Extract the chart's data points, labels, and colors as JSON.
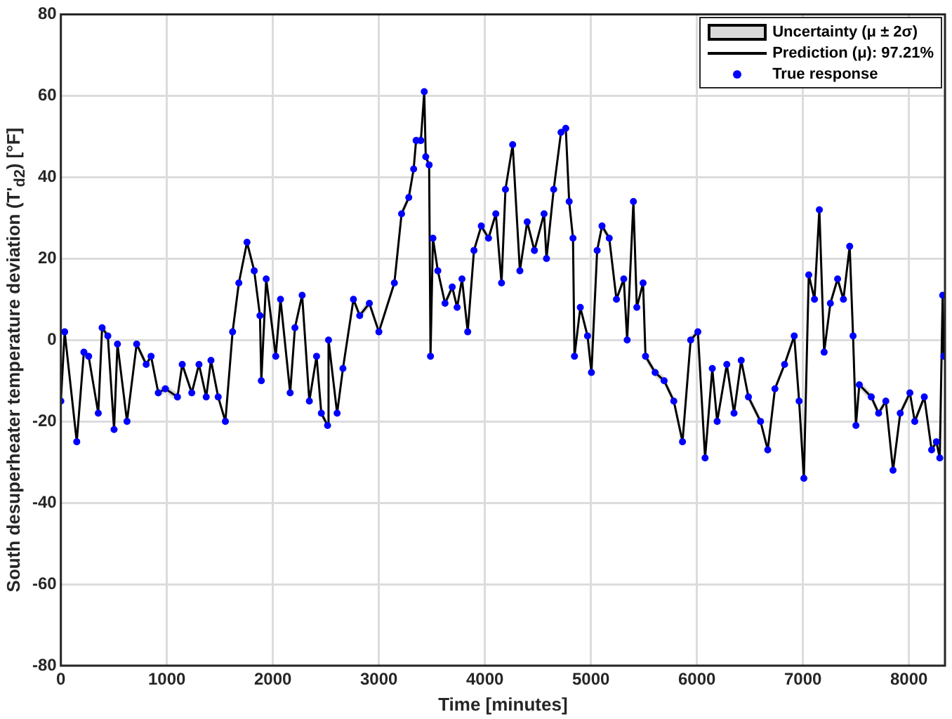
{
  "chart_data": {
    "type": "line",
    "xlabel": "Time [minutes]",
    "ylabel": "South desuperheater temperature deviation (T'$_{d2}$) [°F]",
    "annotations": [
      "Uncertainty (μ ± 2σ)"
    ],
    "x": [
      0,
      36,
      150,
      217,
      262,
      353,
      389,
      443,
      502,
      534,
      624,
      715,
      805,
      851,
      919,
      986,
      1100,
      1145,
      1235,
      1303,
      1371,
      1416,
      1484,
      1552,
      1620,
      1679,
      1756,
      1824,
      1878,
      1891,
      1937,
      2027,
      2072,
      2163,
      2208,
      2276,
      2344,
      2412,
      2457,
      2516,
      2525,
      2606,
      2661,
      2760,
      2819,
      2910,
      3000,
      3146,
      3214,
      3282,
      3328,
      3351,
      3396,
      3428,
      3442,
      3474,
      3487,
      3510,
      3556,
      3624,
      3692,
      3738,
      3784,
      3838,
      3897,
      3966,
      4034,
      4103,
      4157,
      4194,
      4262,
      4330,
      4399,
      4467,
      4558,
      4581,
      4649,
      4718,
      4763,
      4795,
      4831,
      4845,
      4900,
      4968,
      5005,
      5059,
      5105,
      5173,
      5241,
      5310,
      5342,
      5401,
      5433,
      5492,
      5515,
      5606,
      5691,
      5782,
      5864,
      5941,
      6009,
      6077,
      6145,
      6191,
      6282,
      6350,
      6418,
      6486,
      6600,
      6668,
      6736,
      6827,
      6918,
      6964,
      7009,
      7055,
      7109,
      7155,
      7200,
      7259,
      7327,
      7382,
      7441,
      7473,
      7500,
      7532,
      7645,
      7714,
      7782,
      7850,
      7918,
      8009,
      8055,
      8145,
      8214,
      8259,
      8291,
      8318,
      8330
    ],
    "series": [
      {
        "name": "Prediction (μ): 97.21%",
        "color": "#000000",
        "line_style": "solid",
        "values": [
          -15,
          2,
          -25,
          -3,
          -4,
          -18,
          3,
          1,
          -22,
          -1,
          -20,
          -1,
          -6,
          -4,
          -13,
          -12,
          -14,
          -6,
          -13,
          -6,
          -14,
          -5,
          -14,
          -20,
          2,
          14,
          24,
          17,
          6,
          -10,
          15,
          -4,
          10,
          -13,
          3,
          11,
          -15,
          -4,
          -18,
          -21,
          0,
          -18,
          -7,
          10,
          6,
          9,
          2,
          14,
          31,
          35,
          42,
          49,
          49,
          61,
          45,
          43,
          -4,
          25,
          17,
          9,
          13,
          8,
          15,
          2,
          22,
          28,
          25,
          31,
          14,
          37,
          48,
          17,
          29,
          22,
          31,
          20,
          37,
          51,
          52,
          34,
          25,
          -4,
          8,
          1,
          -8,
          22,
          28,
          25,
          10,
          15,
          0,
          34,
          8,
          14,
          -4,
          -8,
          -10,
          -15,
          -25,
          0,
          2,
          -29,
          -7,
          -20,
          -6,
          -18,
          -5,
          -14,
          -20,
          -27,
          -12,
          -6,
          1,
          -15,
          -34,
          16,
          10,
          32,
          -3,
          9,
          15,
          10,
          23,
          1,
          -21,
          -11,
          -14,
          -18,
          -15,
          -32,
          -18,
          -13,
          -20,
          -14,
          -27,
          -25,
          -29,
          11,
          -4
        ],
        "lower": [
          -16,
          1,
          -26,
          -4,
          -5,
          -19,
          2,
          0,
          -23,
          -2,
          -21,
          -2,
          -7,
          -5,
          -14,
          -13,
          -15,
          -7,
          -14,
          -7,
          -15,
          -6,
          -15,
          -21,
          1,
          13,
          23,
          16,
          5,
          -11,
          14,
          -5,
          9,
          -14,
          2,
          10,
          -16,
          -5,
          -19,
          -22,
          -1,
          -19,
          -8,
          9,
          5,
          8,
          1,
          13,
          30,
          34,
          41,
          48,
          48,
          60,
          44,
          42,
          -5,
          24,
          16,
          8,
          12,
          7,
          14,
          1,
          21,
          27,
          24,
          30,
          13,
          36,
          47,
          16,
          28,
          21,
          30,
          19,
          36,
          50,
          51,
          33,
          24,
          -5,
          7,
          0,
          -9,
          21,
          27,
          24,
          9,
          14,
          -1,
          33,
          7,
          13,
          -5,
          -9,
          -11,
          -16,
          -26,
          -1,
          1,
          -30,
          -8,
          -21,
          -7,
          -19,
          -6,
          -15,
          -21,
          -28,
          -13,
          -7,
          0,
          -16,
          -35,
          15,
          9,
          31,
          -4,
          8,
          14,
          9,
          22,
          0,
          -22,
          -12,
          -15,
          -19,
          -16,
          -33,
          -19,
          -14,
          -21,
          -15,
          -28,
          -26,
          -30,
          10,
          -5
        ],
        "upper": [
          -14,
          3,
          -24,
          -2,
          -3,
          -17,
          4,
          2,
          -21,
          0,
          -19,
          0,
          -5,
          -3,
          -12,
          -11,
          -13,
          -5,
          -12,
          -5,
          -13,
          -4,
          -13,
          -19,
          3,
          15,
          25,
          18,
          7,
          -9,
          16,
          -3,
          11,
          -12,
          4,
          12,
          -14,
          -3,
          -17,
          -20,
          1,
          -17,
          -6,
          11,
          7,
          10,
          3,
          15,
          32,
          36,
          43,
          50,
          50,
          62,
          46,
          44,
          -3,
          26,
          18,
          10,
          14,
          9,
          16,
          3,
          23,
          29,
          26,
          32,
          15,
          38,
          49,
          18,
          30,
          23,
          32,
          21,
          38,
          52,
          53,
          35,
          26,
          -3,
          9,
          2,
          -7,
          23,
          29,
          26,
          11,
          16,
          1,
          35,
          9,
          15,
          -3,
          -7,
          -9,
          -14,
          -24,
          1,
          3,
          -28,
          -6,
          -19,
          -5,
          -17,
          -4,
          -13,
          -19,
          -26,
          -11,
          -5,
          2,
          -14,
          -33,
          17,
          11,
          33,
          -2,
          10,
          16,
          11,
          24,
          2,
          -20,
          -10,
          -13,
          -17,
          -14,
          -31,
          -17,
          -12,
          -19,
          -13,
          -26,
          -24,
          -28,
          12,
          -3
        ]
      },
      {
        "name": "True response",
        "type": "scatter",
        "color": "#0000ff",
        "marker": "circle",
        "values": [
          -15,
          2,
          -25,
          -3,
          -4,
          -18,
          3,
          1,
          -22,
          -1,
          -20,
          -1,
          -6,
          -4,
          -13,
          -12,
          -14,
          -6,
          -13,
          -6,
          -14,
          -5,
          -14,
          -20,
          2,
          14,
          24,
          17,
          6,
          -10,
          15,
          -4,
          10,
          -13,
          3,
          11,
          -15,
          -4,
          -18,
          -21,
          0,
          -18,
          -7,
          10,
          6,
          9,
          2,
          14,
          31,
          35,
          42,
          49,
          49,
          61,
          45,
          43,
          -4,
          25,
          17,
          9,
          13,
          8,
          15,
          2,
          22,
          28,
          25,
          31,
          14,
          37,
          48,
          17,
          29,
          22,
          31,
          20,
          37,
          51,
          52,
          34,
          25,
          -4,
          8,
          1,
          -8,
          22,
          28,
          25,
          10,
          15,
          0,
          34,
          8,
          14,
          -4,
          -8,
          -10,
          -15,
          -25,
          0,
          2,
          -29,
          -7,
          -20,
          -6,
          -18,
          -5,
          -14,
          -20,
          -27,
          -12,
          -6,
          1,
          -15,
          -34,
          16,
          10,
          32,
          -3,
          9,
          15,
          10,
          23,
          1,
          -21,
          -11,
          -14,
          -18,
          -15,
          -32,
          -18,
          -13,
          -20,
          -14,
          -27,
          -25,
          -29,
          11,
          -4
        ]
      }
    ],
    "xlim": [
      0,
      8340
    ],
    "xticks": [
      0,
      1000,
      2000,
      3000,
      4000,
      5000,
      6000,
      7000,
      8000
    ],
    "ylim": [
      -80,
      80
    ],
    "yticks": [
      -80,
      -60,
      -40,
      -20,
      0,
      20,
      40,
      60,
      80
    ],
    "grid": true,
    "legend": "top right"
  }
}
